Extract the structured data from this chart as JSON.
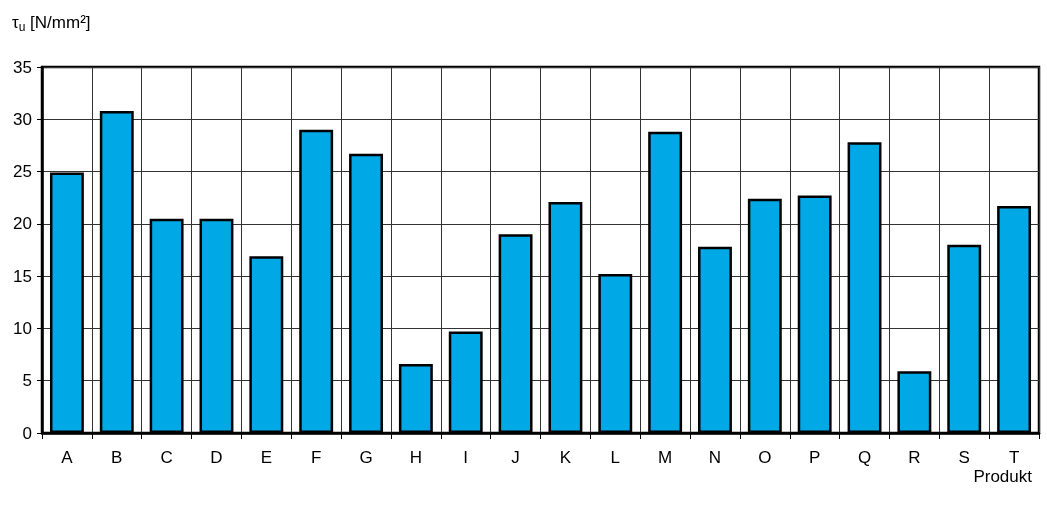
{
  "chart_data": {
    "type": "bar",
    "ylabel": "τ$_{u}$ [N/mm²]",
    "xlabel": "Produkt",
    "categories": [
      "A",
      "B",
      "C",
      "D",
      "E",
      "F",
      "G",
      "H",
      "I",
      "J",
      "K",
      "L",
      "M",
      "N",
      "O",
      "P",
      "Q",
      "R",
      "S",
      "T"
    ],
    "values": [
      24.9,
      30.8,
      20.5,
      20.5,
      16.9,
      29.0,
      26.7,
      6.6,
      9.7,
      19.0,
      22.1,
      15.2,
      28.8,
      17.8,
      22.4,
      22.7,
      27.8,
      5.9,
      18.0,
      21.7
    ],
    "color": "#00a8e6",
    "ylim": [
      0,
      35
    ],
    "yticks": [
      0,
      5,
      10,
      15,
      20,
      25,
      30,
      35
    ],
    "grid": true
  }
}
